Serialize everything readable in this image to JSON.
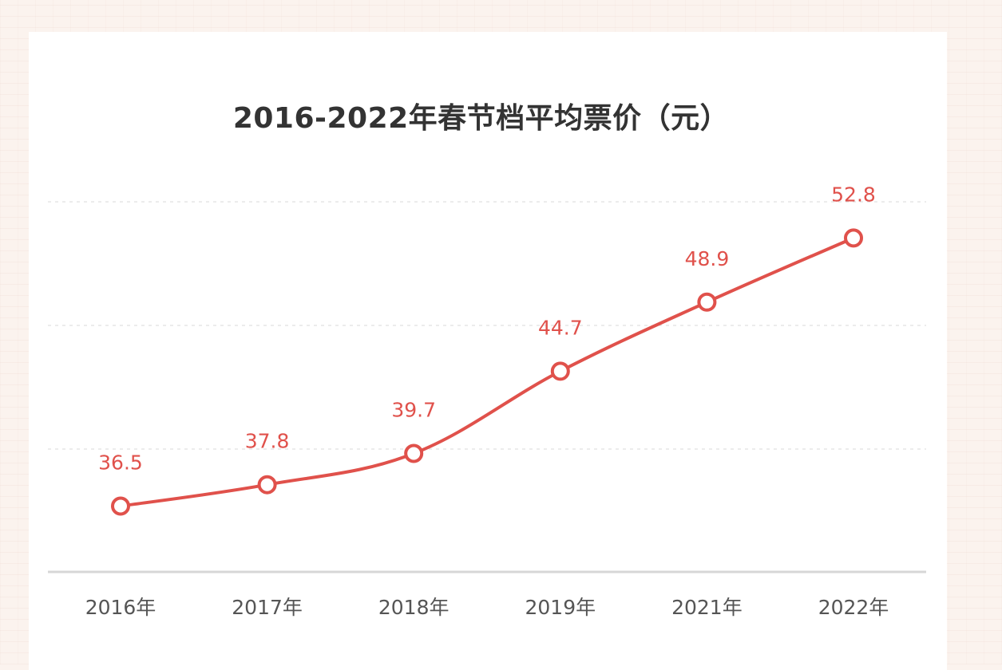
{
  "chart_data": {
    "type": "line",
    "title": "2016-2022年春节档平均票价（元）",
    "xlabel": "",
    "ylabel": "",
    "categories": [
      "2016年",
      "2017年",
      "2018年",
      "2019年",
      "2021年",
      "2022年"
    ],
    "series": [
      {
        "values": [
          36.5,
          37.8,
          39.7,
          44.7,
          48.9,
          52.8
        ]
      }
    ],
    "ylim": [
      32.5,
      55.0
    ],
    "grid": true,
    "legend": "none",
    "colors": {
      "line": "#e0514b",
      "label": "#e0514b"
    }
  }
}
